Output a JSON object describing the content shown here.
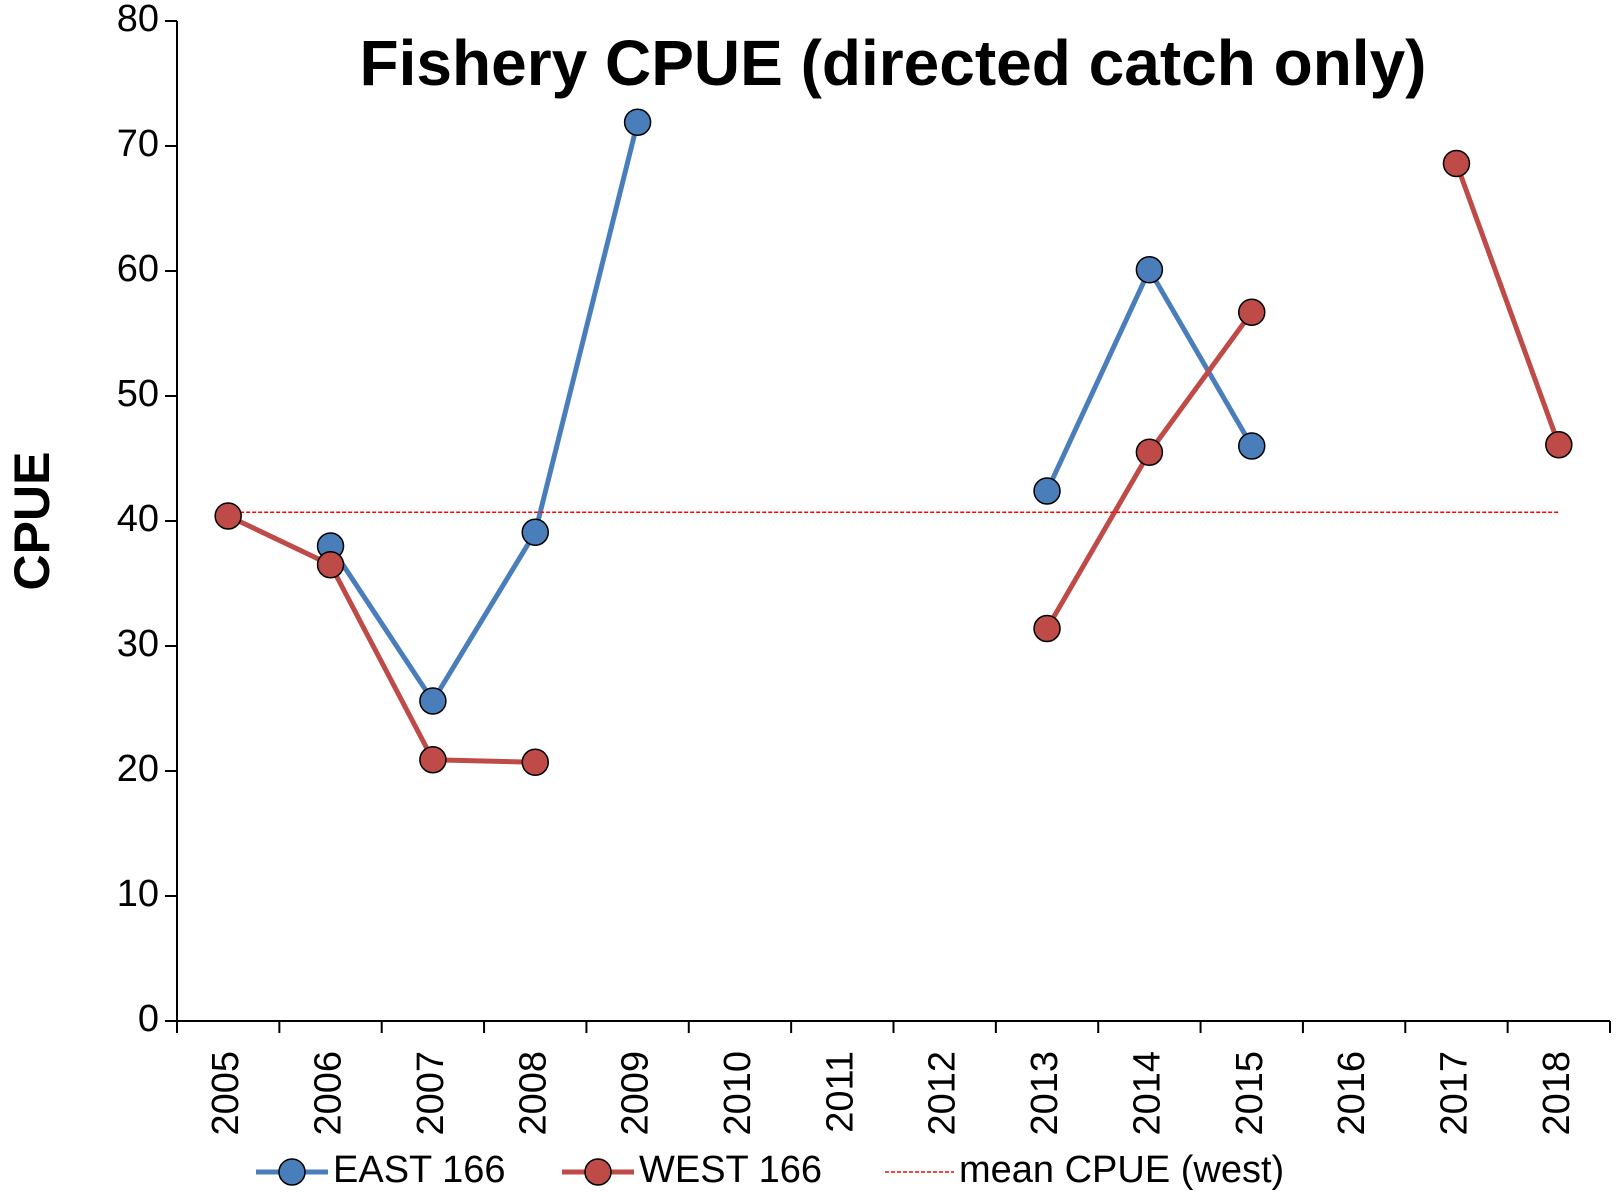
{
  "chart_data": {
    "type": "line",
    "title": "Fishery CPUE (directed catch only)",
    "y_label": "CPUE",
    "categories": [
      "2005",
      "2006",
      "2007",
      "2008",
      "2009",
      "2010",
      "2011",
      "2012",
      "2013",
      "2014",
      "2015",
      "2016",
      "2017",
      "2018"
    ],
    "series": [
      {
        "name": "EAST 166",
        "color": "#4a7ebb",
        "marker": true,
        "values": [
          null,
          38,
          25.6,
          39.1,
          71.9,
          null,
          null,
          null,
          42.4,
          60.1,
          46,
          null,
          null,
          null
        ]
      },
      {
        "name": "WEST 166",
        "color": "#be4b48",
        "marker": true,
        "values": [
          40.4,
          36.5,
          20.9,
          20.7,
          null,
          null,
          null,
          null,
          31.4,
          45.5,
          56.7,
          null,
          68.6,
          46.1
        ]
      },
      {
        "name": "mean CPUE (west)",
        "color": "#ff0000",
        "marker": false,
        "dashed": true,
        "values": [
          40.7,
          40.7,
          40.7,
          40.7,
          40.7,
          40.7,
          40.7,
          40.7,
          40.7,
          40.7,
          40.7,
          40.7,
          40.7,
          40.7
        ]
      }
    ],
    "ylim": [
      0,
      80
    ],
    "yticks": [
      0,
      10,
      20,
      30,
      40,
      50,
      60,
      70,
      80
    ],
    "grid": false,
    "legend": "bottom"
  }
}
